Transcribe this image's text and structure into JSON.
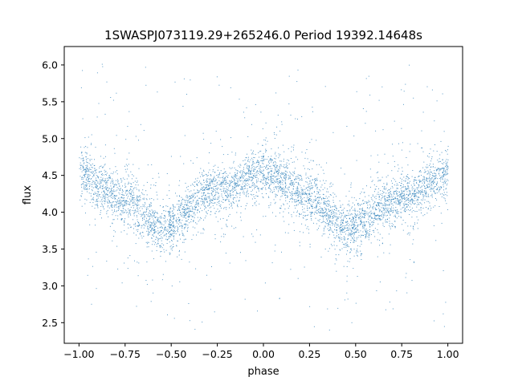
{
  "chart_data": {
    "type": "scatter",
    "title": "1SWASPJ073119.29+265246.0 Period 19392.14648s",
    "xlabel": "phase",
    "ylabel": "flux",
    "xlim": [
      -1.08,
      1.08
    ],
    "ylim": [
      2.22,
      6.25
    ],
    "xticks": [
      -1.0,
      -0.75,
      -0.5,
      -0.25,
      0.0,
      0.25,
      0.5,
      0.75,
      1.0
    ],
    "xtick_labels": [
      "−1.00",
      "−0.75",
      "−0.50",
      "−0.25",
      "0.00",
      "0.25",
      "0.50",
      "0.75",
      "1.00"
    ],
    "yticks": [
      2.5,
      3.0,
      3.5,
      4.0,
      4.5,
      5.0,
      5.5,
      6.0
    ],
    "ytick_labels": [
      "2.5",
      "3.0",
      "3.5",
      "4.0",
      "4.5",
      "5.0",
      "5.5",
      "6.0"
    ],
    "grid": false,
    "marker_color": "#1f77b4",
    "series": [
      {
        "name": "",
        "x_range": [
          -1.0,
          1.0
        ],
        "model": "sinusoid",
        "mean_flux": 4.17,
        "amplitude": 0.38,
        "phase_of_max": [
          -1.0,
          0.0,
          1.0
        ],
        "phase_of_min": [
          -0.55,
          0.45
        ],
        "trend_points": [
          {
            "x": -1.0,
            "y": 4.52
          },
          {
            "x": -0.75,
            "y": 4.17
          },
          {
            "x": -0.55,
            "y": 3.8
          },
          {
            "x": -0.25,
            "y": 4.3
          },
          {
            "x": 0.0,
            "y": 4.55
          },
          {
            "x": 0.25,
            "y": 4.2
          },
          {
            "x": 0.45,
            "y": 3.78
          },
          {
            "x": 0.75,
            "y": 4.2
          },
          {
            "x": 1.0,
            "y": 4.52
          }
        ],
        "core_scatter_sigma": 0.16,
        "outlier_range": [
          2.4,
          6.05
        ]
      }
    ]
  }
}
